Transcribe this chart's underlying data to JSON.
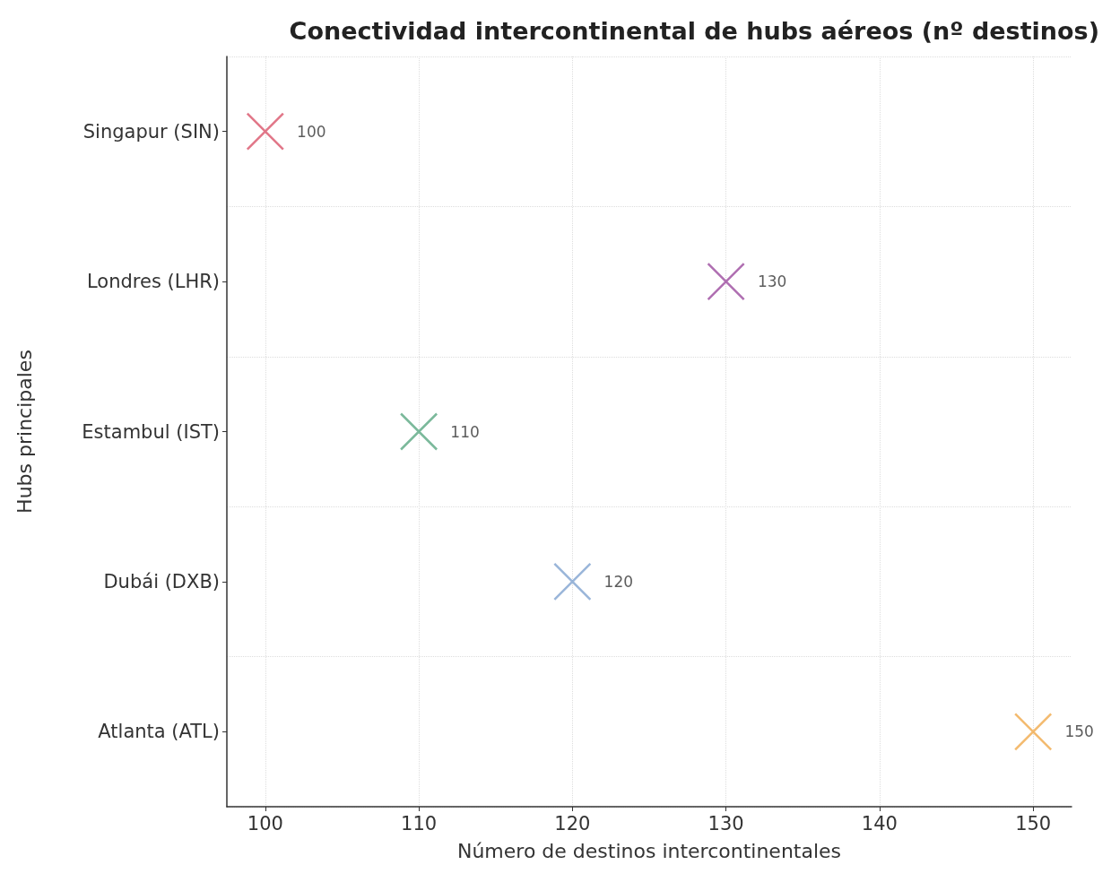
{
  "chart_data": {
    "type": "scatter",
    "title": "Conectividad intercontinental de hubs aéreos (nº destinos)",
    "xlabel": "Número de destinos intercontinentales",
    "ylabel": "Hubs principales",
    "orientation": "horizontal",
    "categories": [
      "Singapur (SIN)",
      "Londres (LHR)",
      "Estambul (IST)",
      "Dubái (DXB)",
      "Atlanta (ATL)"
    ],
    "values": [
      100,
      130,
      110,
      120,
      150
    ],
    "colors": [
      "#d9546a",
      "#9b4a9e",
      "#5aa882",
      "#7fa3cf",
      "#f0a94a"
    ],
    "xlim": [
      97.5,
      152.5
    ],
    "xticks": [
      100,
      110,
      120,
      130,
      140,
      150
    ],
    "marker": "cross",
    "grid": true,
    "data_labels": true
  }
}
